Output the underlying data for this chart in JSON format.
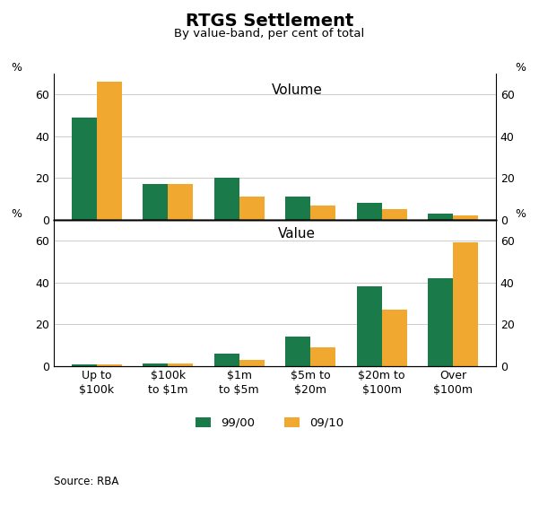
{
  "title": "RTGS Settlement",
  "subtitle": "By value-band, per cent of total",
  "categories": [
    "Up to\n$100k",
    "$100k\nto $1m",
    "$1m\nto $5m",
    "$5m to\n$20m",
    "$20m to\n$100m",
    "Over\n$100m"
  ],
  "volume_9900": [
    49,
    17,
    20,
    11,
    8,
    3
  ],
  "volume_0910": [
    66,
    17,
    11,
    7,
    5,
    2
  ],
  "value_9900": [
    0.5,
    1,
    6,
    14,
    38,
    42
  ],
  "value_0910": [
    0.5,
    1,
    3,
    9,
    27,
    59
  ],
  "color_9900": "#1a7a4a",
  "color_0910": "#f0a830",
  "legend_labels": [
    "99/00",
    "09/10"
  ],
  "source": "Source: RBA",
  "volume_ylim": [
    0,
    70
  ],
  "value_ylim": [
    0,
    70
  ],
  "volume_yticks": [
    0,
    20,
    40,
    60
  ],
  "value_yticks": [
    0,
    20,
    40,
    60
  ],
  "volume_label": "Volume",
  "value_label": "Value",
  "bar_width": 0.35
}
